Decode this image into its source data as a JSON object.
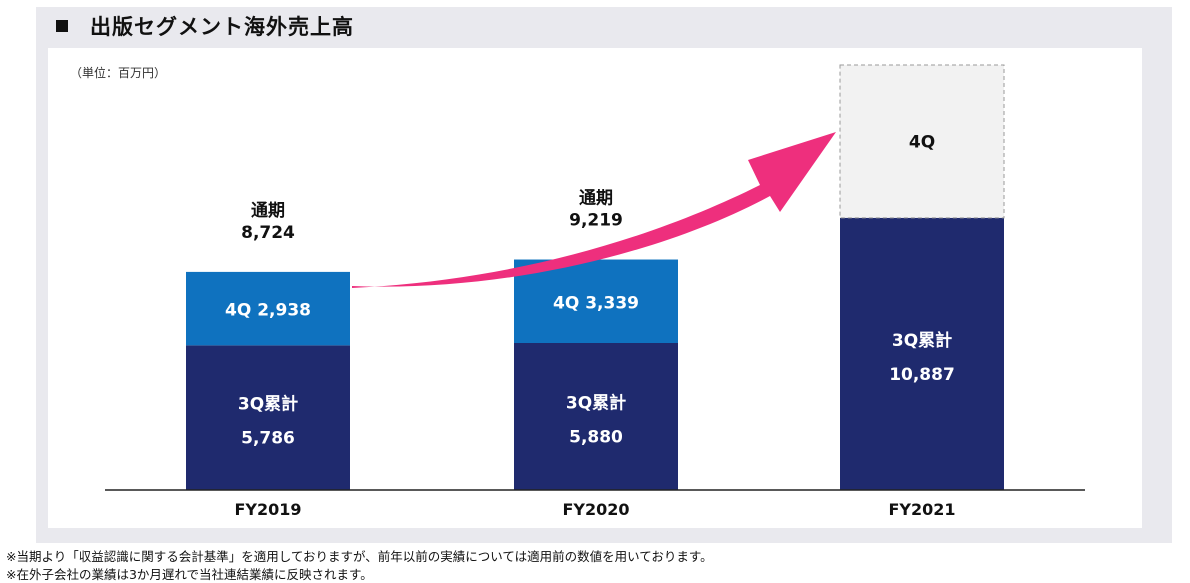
{
  "header": {
    "title": "出版セグメント海外売上高"
  },
  "unit_label": "（単位：百万円）",
  "notes": [
    "※当期より「収益認識に関する会計基準」を適用しておりますが、前年以前の実績については適用前の数値を用いております。",
    "※在外子会社の業績は3か月遅れで当社連結業績に反映されます。"
  ],
  "colors": {
    "q3_cumulative": "#1f2a6e",
    "q4": "#0f72bf",
    "q4_forecast_fill": "#f2f2f2",
    "arrow": "#ee2f7d",
    "frame": "#e9e9ee"
  },
  "chart_data": {
    "type": "bar",
    "stacked": true,
    "categories": [
      "FY2019",
      "FY2020",
      "FY2021"
    ],
    "series": [
      {
        "name": "3Q累計",
        "values": [
          5786,
          5880,
          10887
        ]
      },
      {
        "name": "4Q",
        "values": [
          2938,
          3339,
          null
        ]
      }
    ],
    "totals": [
      8724,
      9219,
      null
    ],
    "total_label": "通期",
    "q3_label": "3Q累計",
    "q4_label": "4Q",
    "value_labels": {
      "q3": [
        "5,786",
        "5,880",
        "10,887"
      ],
      "q4": [
        "2,938",
        "3,339",
        ""
      ],
      "totals": [
        "8,724",
        "9,219",
        ""
      ]
    },
    "forecast_placeholder": {
      "category": "FY2021",
      "label": "4Q",
      "style": "dashed outline"
    },
    "annotation": "growth arrow from FY2019 to FY2021",
    "ylim": [
      0,
      17000
    ],
    "grid": false,
    "legend": "none",
    "title": "",
    "xlabel": "",
    "ylabel": ""
  }
}
